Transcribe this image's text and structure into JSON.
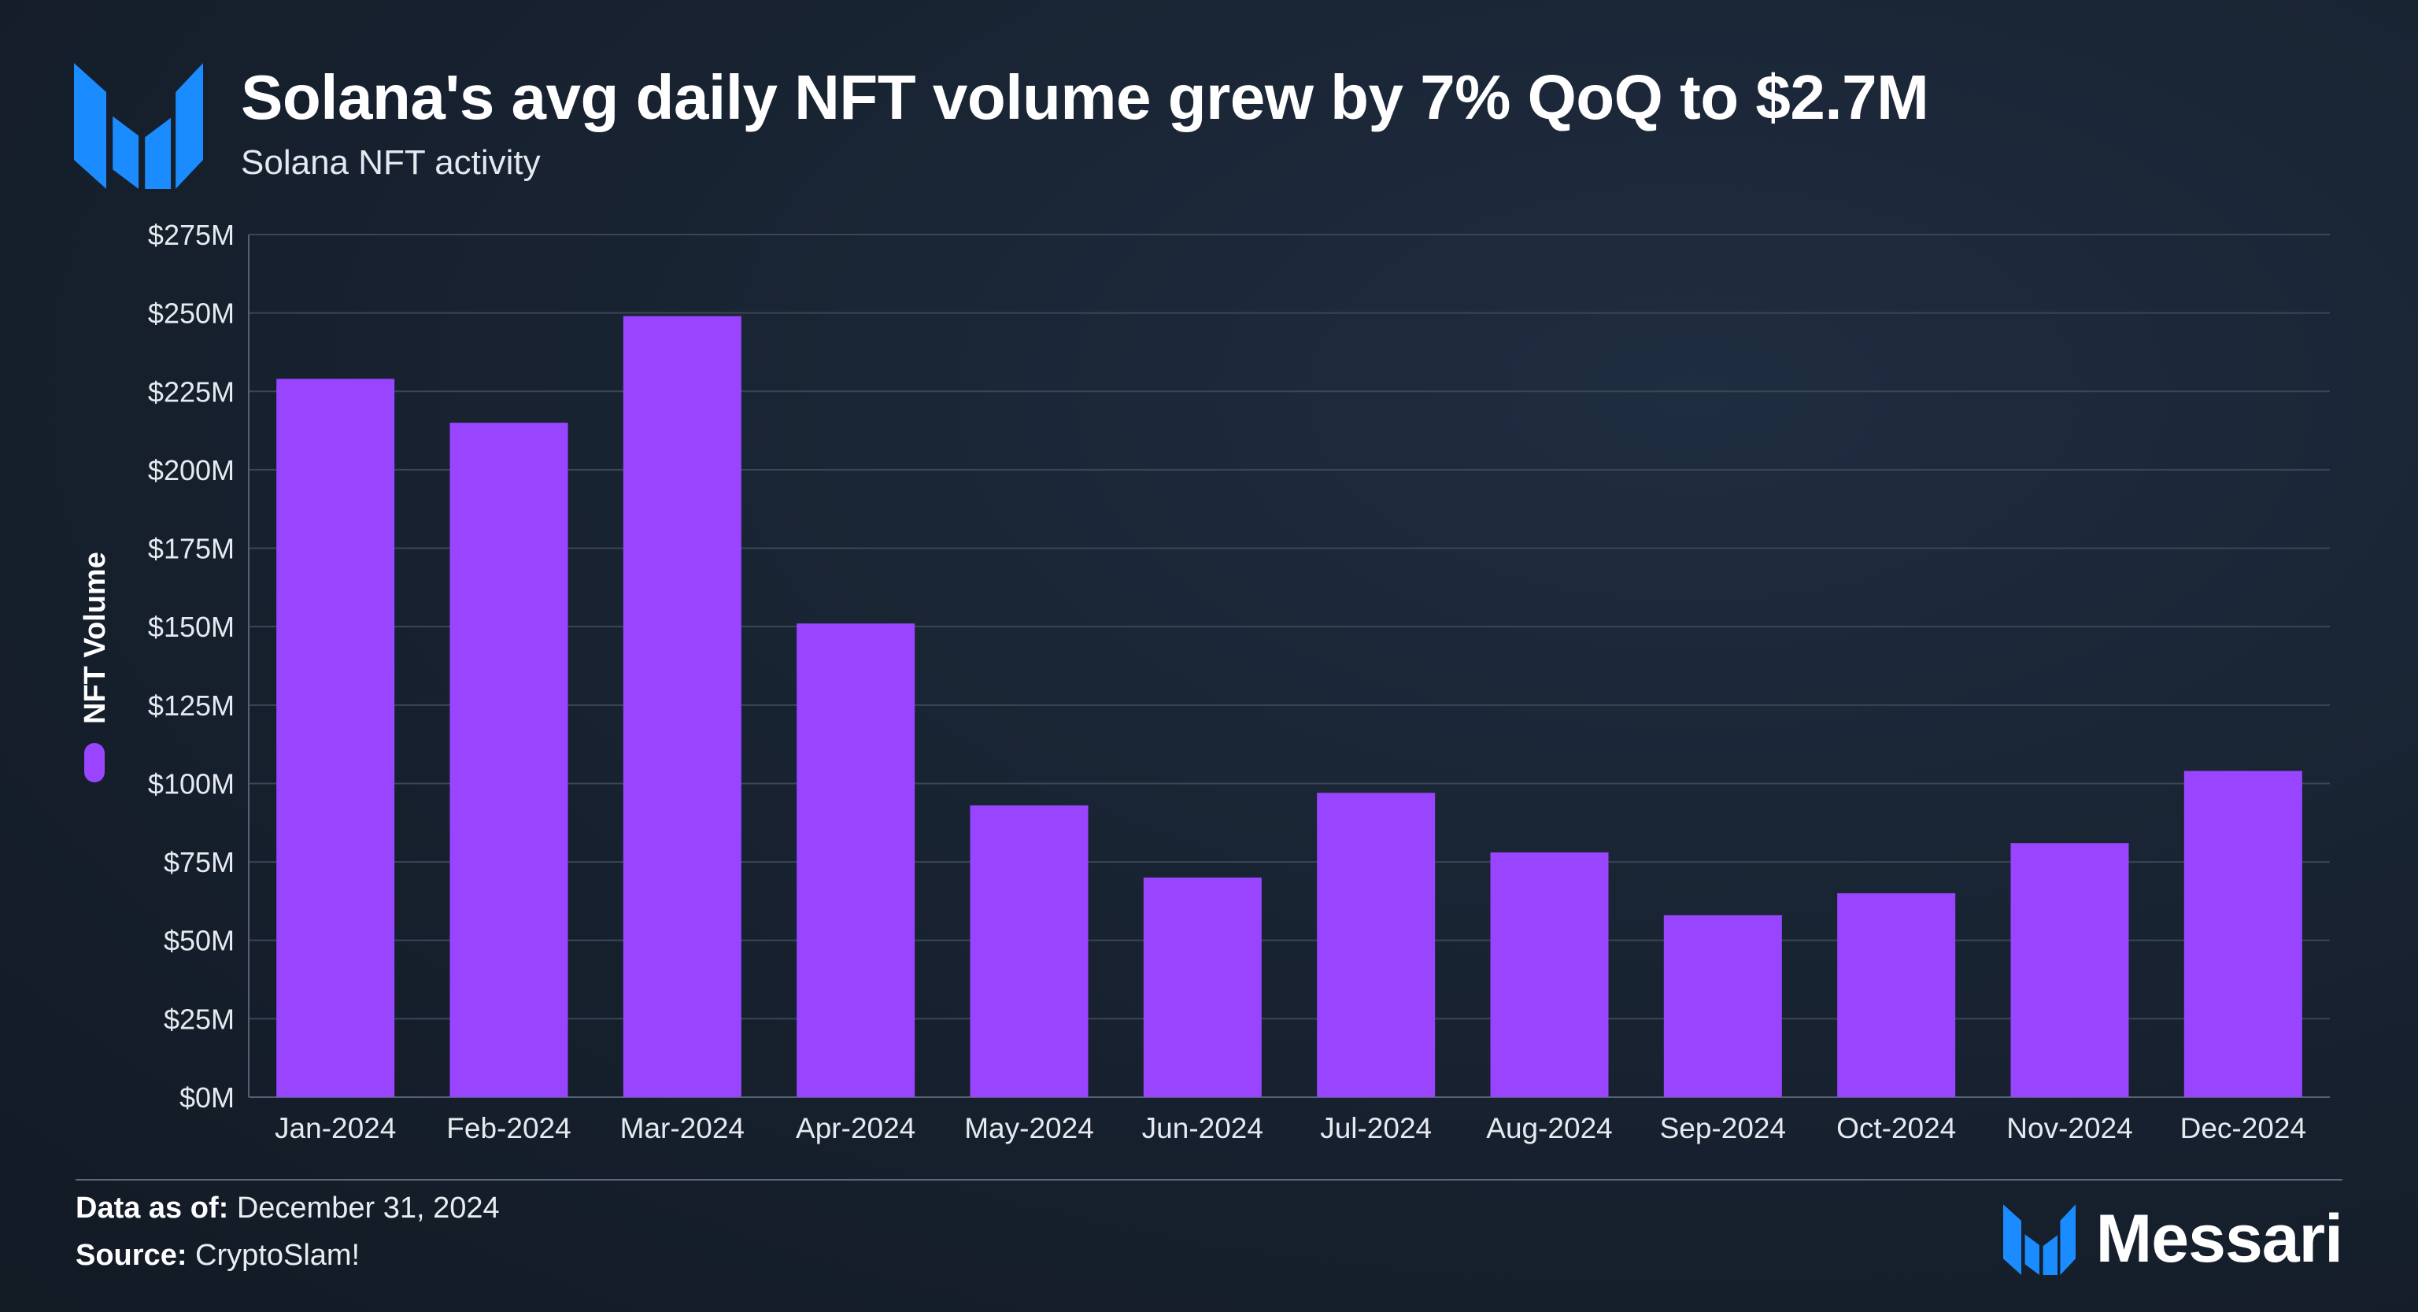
{
  "header": {
    "title": "Solana's avg daily NFT volume grew by 7% QoQ to $2.7M",
    "subtitle": "Solana NFT activity",
    "logo_icon": "messari-logo-icon"
  },
  "colors": {
    "bar": "#9945FF",
    "logo_blue": "#1A8CFF",
    "grid": "#3a4656",
    "axis_text": "#e6eaf0"
  },
  "chart_data": {
    "type": "bar",
    "categories": [
      "Jan-2024",
      "Feb-2024",
      "Mar-2024",
      "Apr-2024",
      "May-2024",
      "Jun-2024",
      "Jul-2024",
      "Aug-2024",
      "Sep-2024",
      "Oct-2024",
      "Nov-2024",
      "Dec-2024"
    ],
    "series": [
      {
        "name": "NFT Volume",
        "values": [
          229,
          215,
          249,
          151,
          93,
          70,
          97,
          78,
          58,
          65,
          81,
          104
        ]
      }
    ],
    "units": "$M",
    "ylim": [
      0,
      275
    ],
    "yticks": [
      0,
      25,
      50,
      75,
      100,
      125,
      150,
      175,
      200,
      225,
      250,
      275
    ],
    "ytick_labels": [
      "$0M",
      "$25M",
      "$50M",
      "$75M",
      "$100M",
      "$125M",
      "$150M",
      "$175M",
      "$200M",
      "$225M",
      "$250M",
      "$275M"
    ],
    "ylabel": "NFT Volume",
    "xlabel": "",
    "grid": true,
    "legend": "left, vertical alongside y-axis"
  },
  "footer": {
    "data_as_of_label": "Data as of:",
    "data_as_of_value": "December 31, 2024",
    "source_label": "Source:",
    "source_value": "CryptoSlam!",
    "brand_name": "Messari",
    "brand_icon": "messari-logo-icon"
  }
}
